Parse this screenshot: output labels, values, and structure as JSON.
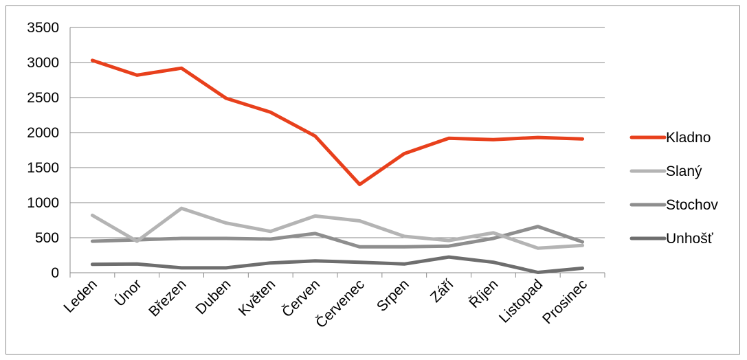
{
  "chart_data": {
    "type": "line",
    "title": "",
    "xlabel": "",
    "ylabel": "",
    "ylim": [
      0,
      3500
    ],
    "yticks": [
      0,
      500,
      1000,
      1500,
      2000,
      2500,
      3000,
      3500
    ],
    "grid": "horizontal",
    "legend_position": "right",
    "categories": [
      "Leden",
      "Únor",
      "Březen",
      "Duben",
      "Květen",
      "Červen",
      "Červenec",
      "Srpen",
      "Září",
      "Říjen",
      "Listopad",
      "Prosinec"
    ],
    "series": [
      {
        "name": "Kladno",
        "color": "#e8401c",
        "values": [
          3030,
          2820,
          2920,
          2490,
          2290,
          1950,
          1260,
          1700,
          1920,
          1900,
          1930,
          1910
        ]
      },
      {
        "name": "Slaný",
        "color": "#b4b4b4",
        "values": [
          820,
          450,
          920,
          710,
          590,
          810,
          740,
          520,
          460,
          570,
          350,
          390
        ]
      },
      {
        "name": "Stochov",
        "color": "#8e8e8e",
        "values": [
          450,
          470,
          490,
          490,
          480,
          560,
          370,
          370,
          380,
          490,
          660,
          440
        ]
      },
      {
        "name": "Unhošť",
        "color": "#6e6e6e",
        "values": [
          120,
          125,
          70,
          70,
          140,
          170,
          150,
          125,
          225,
          150,
          5,
          65
        ]
      }
    ]
  }
}
